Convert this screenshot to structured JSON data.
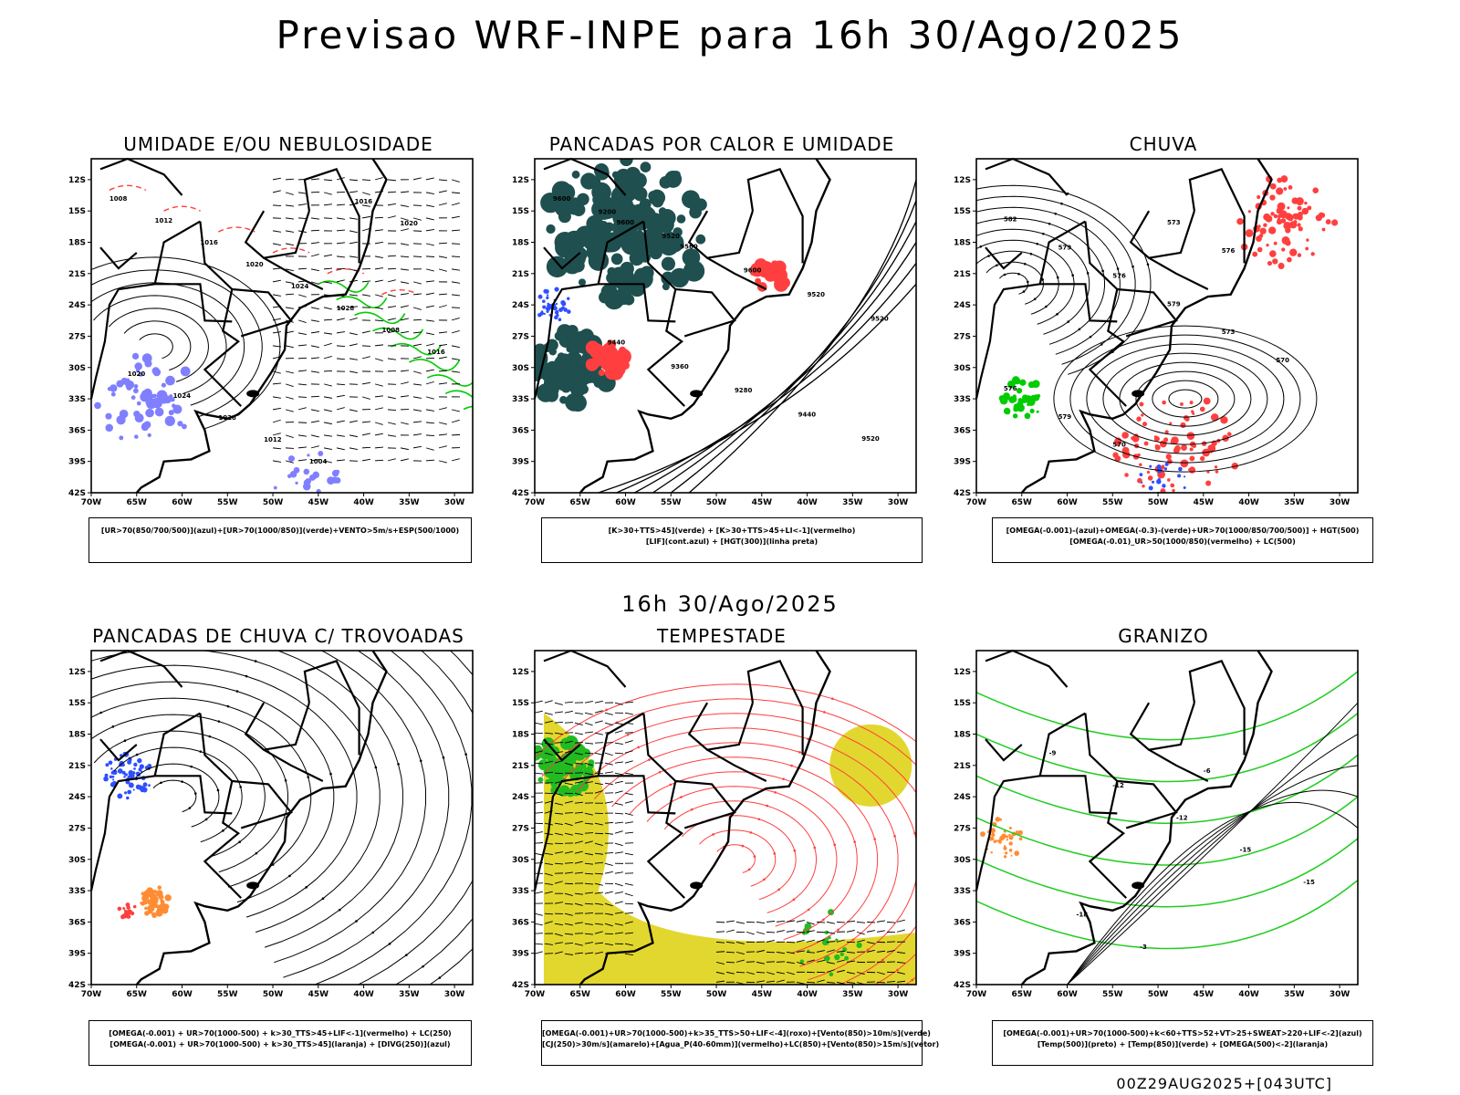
{
  "title": "Previsao WRF-INPE  para 16h 30/Ago/2025",
  "subtitle": "16h 30/Ago/2025",
  "footer": "00Z29AUG2025+[043UTC]",
  "axes": {
    "lat_ticks": [
      "12S",
      "15S",
      "18S",
      "21S",
      "24S",
      "27S",
      "30S",
      "33S",
      "36S",
      "39S",
      "42S"
    ],
    "lon_ticks": [
      "70W",
      "65W",
      "60W",
      "55W",
      "50W",
      "45W",
      "40W",
      "35W",
      "30W"
    ]
  },
  "colors": {
    "humid_mid": "#7f7fff",
    "humid_low": "#00cc00",
    "instab": "#ff3f3f",
    "orange": "#ff8c33",
    "blue": "#2f4fff",
    "jet_yellow": "#e2d72e",
    "dark_teal": "#1f4f4f"
  },
  "panels": [
    {
      "title": "UMIDADE E/OU NEBULOSIDADE",
      "legend": [
        "[UR>70(850/700/500)](azul)+[UR>70(1000/850)](verde)+VENTO>5m/s+ESP(500/1000)"
      ],
      "labels": [
        "1008",
        "1012",
        "1016",
        "1020",
        "1024",
        "1028",
        "1008",
        "1016",
        "1020",
        "1024",
        "1028",
        "1012",
        "1004",
        "1016",
        "1020"
      ]
    },
    {
      "title": "PANCADAS POR CALOR E UMIDADE",
      "legend": [
        "[K>30+TTS>45](verde) + [K>30+TTS>45+LI<-1](vermelho)",
        "[LIF](cont.azul) + [HGT(300)](linha preta)"
      ],
      "labels": [
        "9600",
        "9600",
        "9560",
        "9600",
        "9520",
        "9520",
        "9440",
        "9360",
        "9280",
        "9440",
        "9520",
        "9200",
        "9520"
      ]
    },
    {
      "title": "CHUVA",
      "legend": [
        "[OMEGA(-0.001)-(azul)+OMEGA(-0.3)-(verde)+UR>70(1000/850/700/500)] + HGT(500)",
        "[OMEGA(-0.01)_UR>50(1000/850)(vermelho) + LC(500)"
      ],
      "labels": [
        "582",
        "579",
        "576",
        "579",
        "573",
        "570",
        "576",
        "579",
        "570",
        "573",
        "576"
      ]
    },
    {
      "title": "PANCADAS DE CHUVA C/ TROVOADAS",
      "legend": [
        "[OMEGA(-0.001) + UR>70(1000-500) + k>30_TTS>45+LIF<-1](vermelho) + LC(250)",
        "[OMEGA(-0.001) + UR>70(1000-500) + k>30_TTS>45](laranja) + [DIVG(250)](azul)"
      ],
      "labels": []
    },
    {
      "title": "TEMPESTADE",
      "legend": [
        "[OMEGA(-0.001)+UR>70(1000-500)+k>35_TTS>50+LIF<-4](roxo)+[Vento(850)>10m/s](verde)",
        "[CJ(250)>30m/s](amarelo)+[Agua_P(40-60mm)](vermelho)+LC(850)+[Vento(850)>15m/s](vetor)"
      ],
      "labels": []
    },
    {
      "title": "GRANIZO",
      "legend": [
        "[OMEGA(-0.001)+UR>70(1000-500)+k<60+TTS>52+VT>25+SWEAT>220+LIF<-2](azul)",
        "[Temp(500)](preto) + [Temp(850)](verde) + [OMEGA(500)<-2](laranja)"
      ],
      "labels": [
        "-9",
        "-12",
        "-12",
        "-15",
        "-15",
        "-18",
        "-3",
        "-6"
      ]
    }
  ]
}
